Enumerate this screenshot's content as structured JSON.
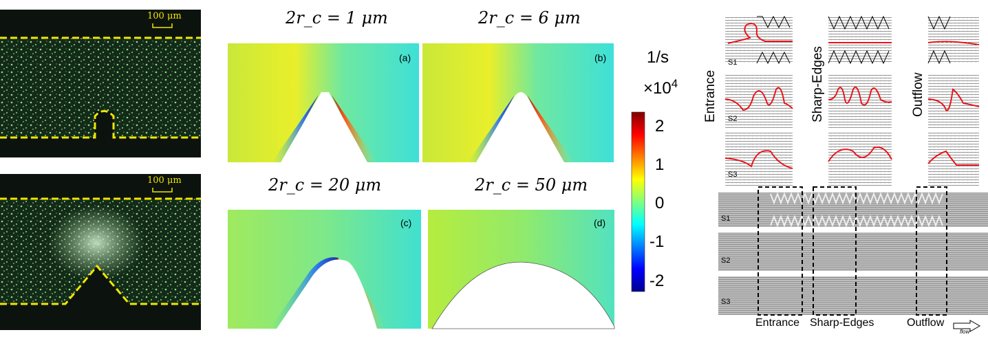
{
  "micrographs": {
    "top": {
      "scale_bar": "100 μm",
      "obstacle": "rectangular post"
    },
    "bottom": {
      "scale_bar": "100 μm",
      "obstacle": "triangular tip"
    }
  },
  "maps": [
    {
      "title": "2r_c = 1 μm",
      "label": "(a)"
    },
    {
      "title": "2r_c = 6 μm",
      "label": "(b)"
    },
    {
      "title": "2r_c = 20 μm",
      "label": "(c)"
    },
    {
      "title": "2r_c = 50 μm",
      "label": "(d)"
    }
  ],
  "colorbar": {
    "unit": "1/s",
    "multiplier": "×10",
    "exponent": "4",
    "ticks": [
      "2",
      "1",
      "0",
      "-1",
      "-2"
    ],
    "range": [
      -2.3,
      2.3
    ],
    "colormap": "jet"
  },
  "streamlines": {
    "column_labels": [
      "Entrance",
      "Sharp-Edges",
      "Outflow"
    ],
    "row_labels": [
      "S1",
      "S2",
      "S3"
    ],
    "strip_labels": [
      "S1",
      "S2",
      "S3"
    ],
    "region_labels": [
      "Entrance",
      "Sharp-Edges",
      "Outflow"
    ],
    "flow_label": "flow",
    "highlight_color": "#e8141b"
  }
}
